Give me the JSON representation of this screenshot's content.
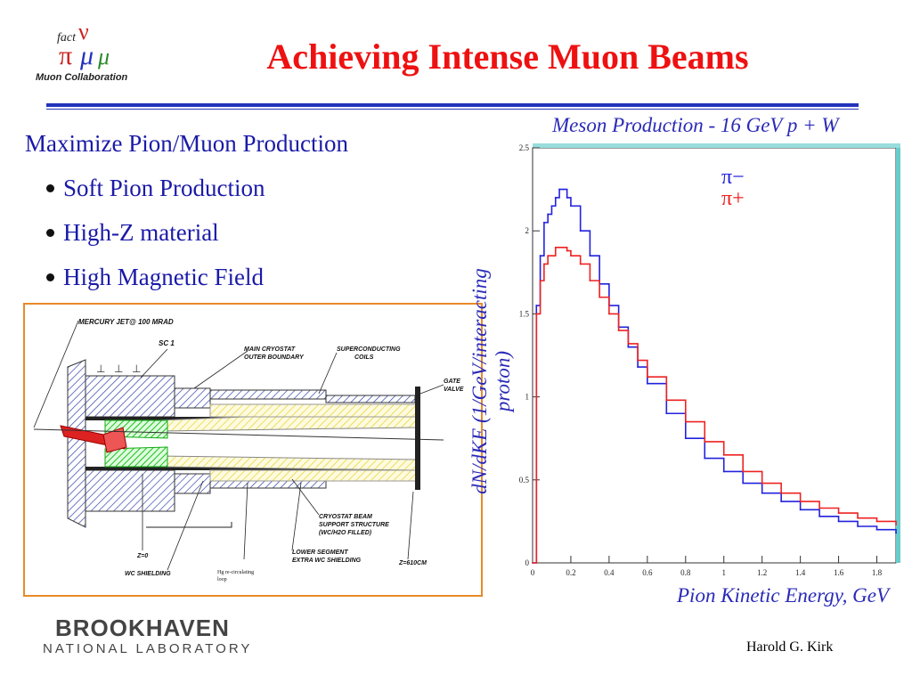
{
  "slide": {
    "title": "Achieving Intense Muon Beams",
    "heading": "Maximize Pion/Muon Production",
    "bullets": [
      "Soft Pion Production",
      "High-Z material",
      "High Magnetic Field"
    ],
    "footer_author": "Harold G. Kirk"
  },
  "logos": {
    "muon_collaboration_text": "Muon Collaboration",
    "muon_collaboration_fact": "fact",
    "bnl_line1": "BROOKHAVEN",
    "bnl_line2": "NATIONAL LABORATORY"
  },
  "diagram": {
    "labels": {
      "mercury_jet": "MERCURY JET@ 100 MRAD",
      "sc1": "SC 1",
      "main_cryostat": "MAIN CRYOSTAT",
      "outer_boundary": "OUTER BOUNDARY",
      "superconducting": "SUPERCONDUCTING",
      "coils": "COILS",
      "gate": "GATE",
      "valve": "VALVE",
      "cryostat_beam": "CRYOSTAT BEAM",
      "support_structure": "SUPPORT STRUCTURE",
      "wch2o": "(WC/H2O FILLED)",
      "lower_segment": "LOWER SEGMENT",
      "extra_wc": "EXTRA WC SHIELDING",
      "z0": "Z=0",
      "z610": "Z=610CM",
      "wc_shielding": "WC SHIELDING",
      "hg_recirc": "Hg re-circulating",
      "loop": "loop"
    },
    "colors": {
      "frame": "#e88a2a",
      "coil_hatch": "#3344aa",
      "target": "#dd2222",
      "green": "#22bb22",
      "yellow": "#e8d640"
    }
  },
  "chart_data": {
    "type": "line",
    "title": "Meson Production - 16 GeV  p + W",
    "xlabel": "Pion Kinetic Energy, GeV",
    "ylabel": "dN/dKE (1/GeV/interacting proton)",
    "xlim": [
      0,
      1.9
    ],
    "ylim": [
      0,
      2.5
    ],
    "xticks": [
      "0",
      "0.2",
      "0.4",
      "0.6",
      "0.8",
      "1",
      "1.2",
      "1.4",
      "1.6",
      "1.8"
    ],
    "yticks": [
      "0",
      "0.5",
      "1",
      "1.5",
      "2",
      "2.5"
    ],
    "legend": "top-right",
    "series": [
      {
        "name": "π−",
        "color": "#2222dd",
        "x": [
          0.0,
          0.02,
          0.04,
          0.06,
          0.08,
          0.1,
          0.12,
          0.14,
          0.16,
          0.18,
          0.2,
          0.25,
          0.3,
          0.35,
          0.4,
          0.45,
          0.5,
          0.55,
          0.6,
          0.7,
          0.8,
          0.9,
          1.0,
          1.1,
          1.2,
          1.3,
          1.4,
          1.5,
          1.6,
          1.7,
          1.8,
          1.9
        ],
        "y": [
          0.0,
          1.55,
          1.85,
          2.05,
          2.1,
          2.15,
          2.2,
          2.25,
          2.25,
          2.2,
          2.15,
          2.0,
          1.85,
          1.68,
          1.55,
          1.42,
          1.3,
          1.18,
          1.08,
          0.9,
          0.75,
          0.63,
          0.55,
          0.48,
          0.42,
          0.37,
          0.32,
          0.28,
          0.25,
          0.22,
          0.2,
          0.18
        ]
      },
      {
        "name": "π+",
        "color": "#ee2222",
        "x": [
          0.0,
          0.02,
          0.04,
          0.06,
          0.08,
          0.1,
          0.12,
          0.14,
          0.16,
          0.18,
          0.2,
          0.25,
          0.3,
          0.35,
          0.4,
          0.45,
          0.5,
          0.55,
          0.6,
          0.7,
          0.8,
          0.9,
          1.0,
          1.1,
          1.2,
          1.3,
          1.4,
          1.5,
          1.6,
          1.7,
          1.8,
          1.9
        ],
        "y": [
          0.0,
          1.5,
          1.7,
          1.8,
          1.85,
          1.85,
          1.9,
          1.9,
          1.9,
          1.88,
          1.85,
          1.8,
          1.7,
          1.6,
          1.5,
          1.4,
          1.32,
          1.22,
          1.12,
          0.98,
          0.85,
          0.73,
          0.65,
          0.55,
          0.48,
          0.42,
          0.37,
          0.33,
          0.3,
          0.27,
          0.25,
          0.23
        ]
      }
    ]
  }
}
